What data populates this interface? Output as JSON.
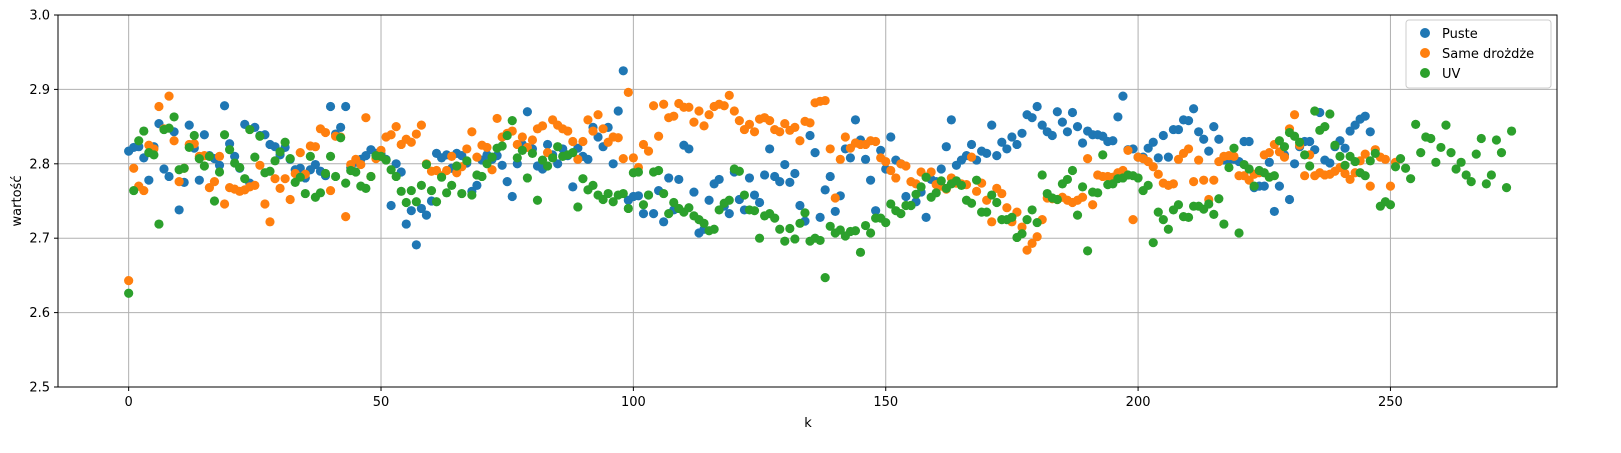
{
  "chart_data": {
    "type": "scatter",
    "xlabel": "k",
    "ylabel": "wartość",
    "xlim": [
      -14,
      283
    ],
    "ylim": [
      2.5,
      3.0
    ],
    "xticks": [
      0,
      50,
      100,
      150,
      200,
      250
    ],
    "yticks": [
      2.5,
      2.6,
      2.7,
      2.8,
      2.9,
      3.0
    ],
    "xtick_labels": [
      "0",
      "50",
      "100",
      "150",
      "200",
      "250"
    ],
    "ytick_labels": [
      "2.5",
      "2.6",
      "2.7",
      "2.8",
      "2.9",
      "3.0"
    ],
    "grid": true,
    "legend_position": "top-right",
    "series": [
      {
        "name": "Puste",
        "color": "#1f77b4",
        "x_start": 0,
        "values": [
          2.817,
          2.822,
          2.823,
          2.808,
          2.778,
          2.823,
          2.854,
          2.793,
          2.783,
          2.843,
          2.738,
          2.775,
          2.852,
          2.821,
          2.778,
          2.839,
          2.811,
          2.807,
          2.798,
          2.878,
          2.827,
          2.81,
          2.794,
          2.853,
          2.774,
          2.849,
          2.838,
          2.839,
          2.826,
          2.823,
          2.812,
          2.822,
          2.806,
          2.792,
          2.794,
          2.781,
          2.792,
          2.799,
          2.79,
          2.784,
          2.877,
          2.84,
          2.849,
          2.877,
          2.795,
          2.802,
          2.806,
          2.811,
          2.819,
          2.814,
          2.813,
          2.806,
          2.744,
          2.8,
          2.789,
          2.719,
          2.737,
          2.691,
          2.74,
          2.731,
          2.75,
          2.814,
          2.808,
          2.812,
          2.794,
          2.814,
          2.811,
          2.801,
          2.763,
          2.771,
          2.805,
          2.812,
          2.806,
          2.811,
          2.798,
          2.776,
          2.756,
          2.8,
          2.826,
          2.87,
          2.82,
          2.797,
          2.793,
          2.826,
          2.812,
          2.8,
          2.82,
          2.811,
          2.769,
          2.821,
          2.81,
          2.806,
          2.849,
          2.836,
          2.823,
          2.849,
          2.8,
          2.871,
          2.925,
          2.751,
          2.756,
          2.757,
          2.733,
          2.758,
          2.733,
          2.764,
          2.722,
          2.781,
          2.738,
          2.779,
          2.825,
          2.82,
          2.762,
          2.707,
          2.712,
          2.751,
          2.773,
          2.779,
          2.743,
          2.733,
          2.789,
          2.752,
          2.738,
          2.781,
          2.758,
          2.748,
          2.785,
          2.82,
          2.783,
          2.776,
          2.799,
          2.775,
          2.787,
          2.744,
          2.723,
          2.838,
          2.815,
          2.728,
          2.765,
          2.783,
          2.736,
          2.757,
          2.82,
          2.808,
          2.859,
          2.832,
          2.806,
          2.778,
          2.737,
          2.818,
          2.793,
          2.836,
          2.805,
          2.8,
          2.756,
          2.744,
          2.749,
          2.762,
          2.728,
          2.779,
          2.776,
          2.793,
          2.823,
          2.859,
          2.798,
          2.805,
          2.811,
          2.826,
          2.805,
          2.817,
          2.814,
          2.852,
          2.811,
          2.829,
          2.82,
          2.836,
          2.826,
          2.841,
          2.866,
          2.862,
          2.877,
          2.852,
          2.843,
          2.838,
          2.87,
          2.856,
          2.843,
          2.869,
          2.85,
          2.828,
          2.844,
          2.839,
          2.839,
          2.837,
          2.83,
          2.831,
          2.863,
          2.891,
          2.819,
          2.82,
          2.809,
          2.809,
          2.821,
          2.829,
          2.808,
          2.838,
          2.809,
          2.846,
          2.846,
          2.859,
          2.858,
          2.874,
          2.843,
          2.833,
          2.817,
          2.85,
          2.833,
          2.805,
          2.805,
          2.806,
          2.803,
          2.83,
          2.83,
          2.768,
          2.77,
          2.77,
          2.802,
          2.736,
          2.77,
          2.812,
          2.752,
          2.8,
          2.823,
          2.83,
          2.83,
          2.819,
          2.869,
          2.805,
          2.801,
          2.823,
          2.831,
          2.821,
          2.844,
          2.852,
          2.86,
          2.864,
          2.843
        ]
      },
      {
        "name": "Same drożdże",
        "color": "#ff7f0e",
        "x_start": 0,
        "values": [
          2.643,
          2.794,
          2.77,
          2.764,
          2.825,
          2.82,
          2.877,
          2.847,
          2.891,
          2.831,
          2.776,
          2.794,
          2.826,
          2.827,
          2.81,
          2.811,
          2.768,
          2.776,
          2.81,
          2.746,
          2.768,
          2.766,
          2.763,
          2.765,
          2.769,
          2.771,
          2.798,
          2.746,
          2.722,
          2.78,
          2.767,
          2.78,
          2.752,
          2.787,
          2.815,
          2.786,
          2.824,
          2.823,
          2.847,
          2.842,
          2.764,
          2.837,
          2.836,
          2.729,
          2.799,
          2.806,
          2.799,
          2.862,
          2.783,
          2.807,
          2.818,
          2.836,
          2.839,
          2.85,
          2.826,
          2.833,
          2.829,
          2.84,
          2.852,
          2.8,
          2.79,
          2.791,
          2.784,
          2.791,
          2.81,
          2.788,
          2.796,
          2.82,
          2.843,
          2.809,
          2.825,
          2.822,
          2.792,
          2.861,
          2.836,
          2.841,
          2.844,
          2.826,
          2.836,
          2.822,
          2.832,
          2.847,
          2.851,
          2.815,
          2.859,
          2.852,
          2.847,
          2.844,
          2.83,
          2.806,
          2.83,
          2.859,
          2.844,
          2.866,
          2.847,
          2.829,
          2.836,
          2.835,
          2.807,
          2.896,
          2.808,
          2.795,
          2.826,
          2.817,
          2.878,
          2.837,
          2.88,
          2.862,
          2.864,
          2.881,
          2.876,
          2.876,
          2.856,
          2.871,
          2.851,
          2.866,
          2.877,
          2.88,
          2.878,
          2.892,
          2.871,
          2.858,
          2.846,
          2.853,
          2.843,
          2.86,
          2.862,
          2.858,
          2.846,
          2.843,
          2.854,
          2.845,
          2.849,
          2.831,
          2.857,
          2.855,
          2.882,
          2.884,
          2.885,
          2.82,
          2.754,
          2.806,
          2.836,
          2.821,
          2.828,
          2.826,
          2.826,
          2.831,
          2.83,
          2.808,
          2.803,
          2.791,
          2.781,
          2.8,
          2.797,
          2.776,
          2.773,
          2.789,
          2.782,
          2.789,
          2.772,
          2.77,
          2.766,
          2.781,
          2.774,
          2.773,
          2.772,
          2.809,
          2.763,
          2.774,
          2.751,
          2.722,
          2.767,
          2.76,
          2.741,
          2.722,
          2.735,
          2.715,
          2.684,
          2.693,
          2.702,
          2.725,
          2.754,
          2.753,
          2.752,
          2.755,
          2.751,
          2.748,
          2.751,
          2.755,
          2.807,
          2.745,
          2.785,
          2.783,
          2.783,
          2.782,
          2.788,
          2.791,
          2.818,
          2.725,
          2.809,
          2.807,
          2.803,
          2.796,
          2.786,
          2.774,
          2.771,
          2.773,
          2.806,
          2.814,
          2.82,
          2.776,
          2.805,
          2.778,
          2.752,
          2.778,
          2.803,
          2.81,
          2.811,
          2.81,
          2.784,
          2.784,
          2.778,
          2.786,
          2.788,
          2.812,
          2.815,
          2.826,
          2.816,
          2.809,
          2.847,
          2.866,
          2.825,
          2.784,
          2.812,
          2.784,
          2.788,
          2.785,
          2.786,
          2.79,
          2.795,
          2.787,
          2.779,
          2.788,
          2.804,
          2.813,
          2.77,
          2.819,
          2.809,
          2.806,
          2.77,
          2.802
        ]
      },
      {
        "name": "UV",
        "color": "#2ca02c",
        "x_start": 0,
        "values": [
          2.626,
          2.764,
          2.831,
          2.844,
          2.815,
          2.812,
          2.719,
          2.846,
          2.848,
          2.863,
          2.792,
          2.794,
          2.822,
          2.838,
          2.807,
          2.797,
          2.81,
          2.75,
          2.789,
          2.839,
          2.819,
          2.801,
          2.795,
          2.78,
          2.846,
          2.809,
          2.837,
          2.788,
          2.79,
          2.804,
          2.816,
          2.829,
          2.807,
          2.775,
          2.782,
          2.76,
          2.81,
          2.755,
          2.761,
          2.787,
          2.81,
          2.783,
          2.835,
          2.774,
          2.791,
          2.789,
          2.77,
          2.767,
          2.783,
          2.811,
          2.81,
          2.805,
          2.792,
          2.783,
          2.763,
          2.748,
          2.764,
          2.749,
          2.771,
          2.799,
          2.764,
          2.749,
          2.782,
          2.761,
          2.771,
          2.797,
          2.76,
          2.804,
          2.758,
          2.785,
          2.783,
          2.8,
          2.809,
          2.821,
          2.824,
          2.838,
          2.858,
          2.808,
          2.818,
          2.781,
          2.814,
          2.751,
          2.805,
          2.797,
          2.808,
          2.823,
          2.81,
          2.812,
          2.815,
          2.742,
          2.78,
          2.765,
          2.771,
          2.758,
          2.752,
          2.76,
          2.749,
          2.758,
          2.76,
          2.74,
          2.788,
          2.789,
          2.745,
          2.758,
          2.789,
          2.791,
          2.76,
          2.733,
          2.748,
          2.74,
          2.735,
          2.741,
          2.73,
          2.725,
          2.72,
          2.71,
          2.712,
          2.738,
          2.747,
          2.751,
          2.793,
          2.79,
          2.758,
          2.738,
          2.737,
          2.7,
          2.73,
          2.733,
          2.727,
          2.712,
          2.696,
          2.713,
          2.699,
          2.72,
          2.734,
          2.696,
          2.7,
          2.697,
          2.647,
          2.716,
          2.707,
          2.711,
          2.703,
          2.709,
          2.71,
          2.681,
          2.717,
          2.707,
          2.727,
          2.727,
          2.721,
          2.746,
          2.737,
          2.733,
          2.744,
          2.744,
          2.759,
          2.769,
          2.782,
          2.755,
          2.761,
          2.777,
          2.767,
          2.773,
          2.777,
          2.771,
          2.751,
          2.747,
          2.778,
          2.735,
          2.735,
          2.758,
          2.748,
          2.725,
          2.725,
          2.728,
          2.701,
          2.706,
          2.725,
          2.738,
          2.721,
          2.785,
          2.76,
          2.754,
          2.752,
          2.773,
          2.779,
          2.791,
          2.731,
          2.769,
          2.683,
          2.762,
          2.761,
          2.812,
          2.772,
          2.773,
          2.78,
          2.781,
          2.785,
          2.784,
          2.781,
          2.764,
          2.771,
          2.694,
          2.735,
          2.725,
          2.712,
          2.738,
          2.745,
          2.729,
          2.728,
          2.743,
          2.743,
          2.739,
          2.746,
          2.732,
          2.753,
          2.719,
          2.795,
          2.821,
          2.707,
          2.799,
          2.793,
          2.77,
          2.791,
          2.788,
          2.782,
          2.784,
          2.831,
          2.823,
          2.842,
          2.837,
          2.829,
          2.812,
          2.797,
          2.871,
          2.845,
          2.85,
          2.867,
          2.825,
          2.81,
          2.798,
          2.81,
          2.803,
          2.788,
          2.784,
          2.804,
          2.814,
          2.743,
          2.749,
          2.745,
          2.796,
          2.807,
          2.794,
          2.78,
          2.853,
          2.815,
          2.836,
          2.834,
          2.802,
          2.822,
          2.852,
          2.815,
          2.793,
          2.802,
          2.785,
          2.776,
          2.813,
          2.834,
          2.773,
          2.785,
          2.832,
          2.815,
          2.768,
          2.844
        ]
      }
    ]
  }
}
